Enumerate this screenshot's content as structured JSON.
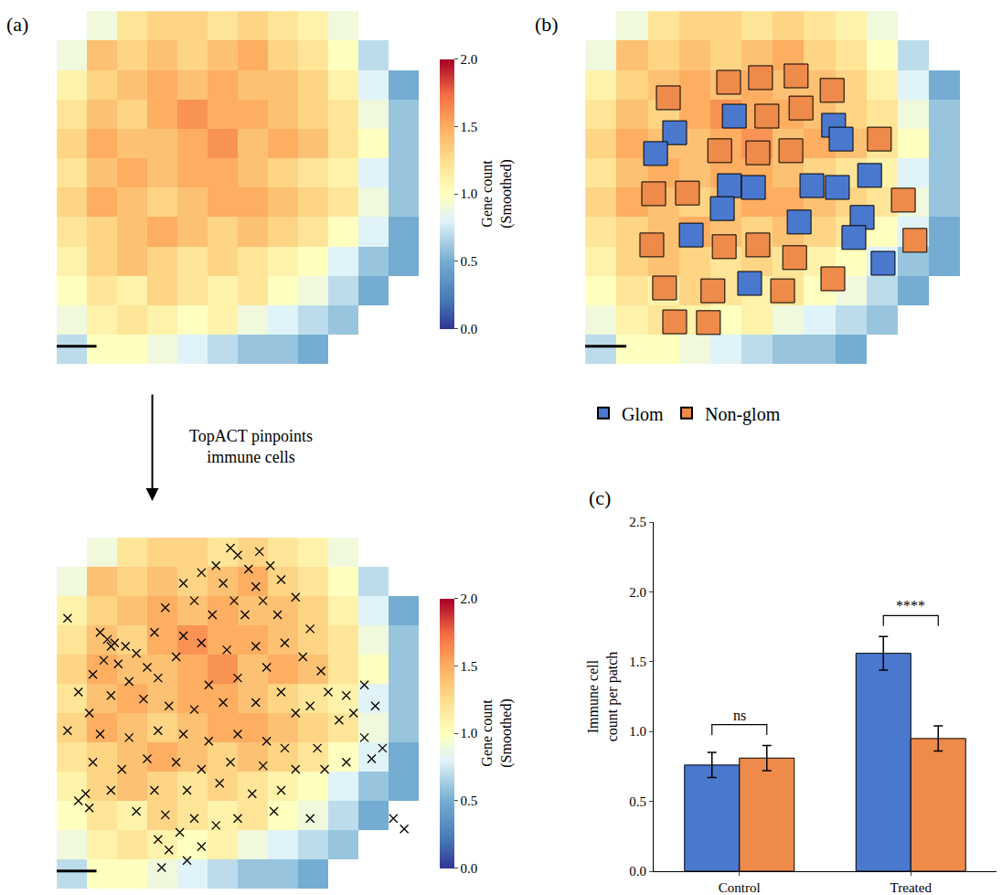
{
  "chart_data": [
    {
      "type": "heatmap",
      "label": "(a)",
      "annotation": "TopACT pinpoints immune cells",
      "x": [
        4.2,
        12.5,
        20.8,
        29.2,
        37.5,
        45.8,
        54.2,
        62.5,
        70.8,
        79.2,
        87.5,
        95.8
      ],
      "y": [
        4.2,
        12.5,
        20.8,
        29.2,
        37.5,
        45.8,
        54.2,
        62.5,
        70.8,
        79.2,
        87.5,
        95.8
      ],
      "z": [
        [
          null,
          0.9,
          1.2,
          1.3,
          1.3,
          1.2,
          1.3,
          1.2,
          1.1,
          0.9,
          null,
          null
        ],
        [
          0.9,
          1.4,
          1.3,
          1.4,
          1.3,
          1.4,
          1.5,
          1.3,
          1.2,
          1.0,
          0.7,
          null
        ],
        [
          1.1,
          1.3,
          1.4,
          1.5,
          1.4,
          1.5,
          1.4,
          1.4,
          1.3,
          1.1,
          0.8,
          0.5
        ],
        [
          1.2,
          1.4,
          1.3,
          1.5,
          1.6,
          1.5,
          1.5,
          1.4,
          1.3,
          1.2,
          0.9,
          0.6
        ],
        [
          1.3,
          1.5,
          1.4,
          1.4,
          1.5,
          1.6,
          1.4,
          1.5,
          1.4,
          1.2,
          1.0,
          0.6
        ],
        [
          1.2,
          1.4,
          1.5,
          1.4,
          1.5,
          1.5,
          1.4,
          1.3,
          1.2,
          1.1,
          0.8,
          0.6
        ],
        [
          1.3,
          1.5,
          1.4,
          1.3,
          1.4,
          1.5,
          1.5,
          1.4,
          1.3,
          1.2,
          0.9,
          0.6
        ],
        [
          1.2,
          1.3,
          1.4,
          1.5,
          1.4,
          1.3,
          1.4,
          1.3,
          1.2,
          1.0,
          0.8,
          0.5
        ],
        [
          1.1,
          1.3,
          1.4,
          1.3,
          1.2,
          1.3,
          1.2,
          1.1,
          1.0,
          0.8,
          0.6,
          0.5
        ],
        [
          1.0,
          1.2,
          1.1,
          1.3,
          1.2,
          1.1,
          1.2,
          1.0,
          0.9,
          0.7,
          0.5,
          null
        ],
        [
          0.9,
          1.1,
          1.2,
          1.1,
          1.0,
          1.1,
          0.9,
          0.8,
          0.7,
          0.6,
          null,
          null
        ],
        [
          0.7,
          1.0,
          1.0,
          0.9,
          0.8,
          0.7,
          0.6,
          0.6,
          0.5,
          null,
          null,
          null
        ]
      ],
      "zlim": [
        0,
        2
      ],
      "zticks": [
        {
          "value": 0,
          "label": "0.0"
        },
        0.5,
        {
          "value": 1,
          "label": "1.0"
        },
        1.5,
        {
          "value": 2,
          "label": "2.0"
        }
      ],
      "colorbar_title": "Gene count (Smoothed)",
      "xlim": [
        0,
        100
      ],
      "ylim": [
        100,
        0
      ],
      "tick_labels": false
    },
    {
      "type": "heatmap",
      "x": [
        4.2,
        12.5,
        20.8,
        29.2,
        37.5,
        45.8,
        54.2,
        62.5,
        70.8,
        79.2,
        87.5,
        95.8
      ],
      "y": [
        4.2,
        12.5,
        20.8,
        29.2,
        37.5,
        45.8,
        54.2,
        62.5,
        70.8,
        79.2,
        87.5,
        95.8
      ],
      "z": [
        [
          null,
          0.9,
          1.2,
          1.3,
          1.3,
          1.2,
          1.3,
          1.2,
          1.1,
          0.9,
          null,
          null
        ],
        [
          0.9,
          1.4,
          1.3,
          1.4,
          1.3,
          1.4,
          1.5,
          1.3,
          1.2,
          1.0,
          0.7,
          null
        ],
        [
          1.1,
          1.3,
          1.4,
          1.5,
          1.4,
          1.5,
          1.4,
          1.4,
          1.3,
          1.1,
          0.8,
          0.5
        ],
        [
          1.2,
          1.4,
          1.3,
          1.5,
          1.6,
          1.5,
          1.5,
          1.4,
          1.3,
          1.2,
          0.9,
          0.6
        ],
        [
          1.3,
          1.5,
          1.4,
          1.4,
          1.5,
          1.6,
          1.4,
          1.5,
          1.4,
          1.2,
          1.0,
          0.6
        ],
        [
          1.2,
          1.4,
          1.5,
          1.4,
          1.5,
          1.5,
          1.4,
          1.3,
          1.2,
          1.1,
          0.8,
          0.6
        ],
        [
          1.3,
          1.5,
          1.4,
          1.3,
          1.4,
          1.5,
          1.5,
          1.4,
          1.3,
          1.2,
          0.9,
          0.6
        ],
        [
          1.2,
          1.3,
          1.4,
          1.5,
          1.4,
          1.3,
          1.4,
          1.3,
          1.2,
          1.0,
          0.8,
          0.5
        ],
        [
          1.1,
          1.3,
          1.4,
          1.3,
          1.2,
          1.3,
          1.2,
          1.1,
          1.0,
          0.8,
          0.6,
          0.5
        ],
        [
          1.0,
          1.2,
          1.1,
          1.3,
          1.2,
          1.1,
          1.2,
          1.0,
          0.9,
          0.7,
          0.5,
          null
        ],
        [
          0.9,
          1.1,
          1.2,
          1.1,
          1.0,
          1.1,
          0.9,
          0.8,
          0.7,
          0.6,
          null,
          null
        ],
        [
          0.7,
          1.0,
          1.0,
          0.9,
          0.8,
          0.7,
          0.6,
          0.6,
          0.5,
          null,
          null,
          null
        ]
      ],
      "zlim": [
        0,
        2
      ],
      "zticks": [
        {
          "value": 0,
          "label": "0.0"
        },
        0.5,
        {
          "value": 1,
          "label": "1.0"
        },
        1.5,
        {
          "value": 2,
          "label": "2.0"
        }
      ],
      "colorbar_title": "Gene count (Smoothed)",
      "xlim": [
        0,
        100
      ],
      "ylim": [
        100,
        0
      ],
      "tick_labels": false,
      "series": [
        {
          "type": "scatter",
          "marker": "x",
          "color": "#000000",
          "x": [
            48,
            50,
            56,
            44,
            53,
            59,
            40,
            35,
            46,
            55,
            62,
            38,
            49,
            57,
            66,
            30,
            43,
            52,
            61,
            3,
            12,
            14,
            15,
            16,
            19,
            22,
            13,
            17,
            25,
            10,
            20,
            28,
            33,
            27,
            35,
            40,
            47,
            55,
            63,
            70,
            68,
            73,
            58,
            50,
            42,
            62,
            75,
            80,
            85,
            88,
            82,
            78,
            70,
            66,
            55,
            46,
            38,
            31,
            24,
            15,
            6,
            9,
            3,
            12,
            20,
            28,
            35,
            42,
            50,
            58,
            63,
            72,
            85,
            90,
            87,
            80,
            74,
            66,
            57,
            48,
            40,
            33,
            25,
            18,
            10,
            15,
            27,
            36,
            45,
            54,
            62,
            8,
            6,
            9,
            22,
            30,
            38,
            44,
            34,
            28,
            31,
            36,
            29,
            40,
            50,
            60,
            70,
            93,
            96
          ],
          "y": [
            3,
            5,
            4,
            8,
            9,
            8,
            10,
            13,
            13,
            14,
            12,
            18,
            18,
            18,
            17,
            20,
            22,
            22,
            22,
            23,
            27,
            29,
            31,
            30,
            31,
            33,
            35,
            36,
            37,
            39,
            41,
            40,
            34,
            27,
            28,
            30,
            32,
            31,
            30,
            26,
            34,
            38,
            37,
            40,
            42,
            44,
            44,
            45,
            42,
            48,
            50,
            52,
            48,
            50,
            47,
            47,
            49,
            48,
            46,
            45,
            44,
            50,
            55,
            56,
            57,
            55,
            56,
            58,
            56,
            58,
            60,
            60,
            57,
            60,
            63,
            64,
            66,
            66,
            65,
            64,
            66,
            64,
            63,
            66,
            64,
            72,
            72,
            72,
            70,
            73,
            72,
            73,
            75,
            77,
            78,
            79,
            80,
            82,
            84,
            86,
            89,
            92,
            94,
            88,
            80,
            78,
            80,
            80,
            83
          ]
        }
      ]
    },
    {
      "type": "heatmap",
      "label": "(b)",
      "x": [
        4.2,
        12.5,
        20.8,
        29.2,
        37.5,
        45.8,
        54.2,
        62.5,
        70.8,
        79.2,
        87.5,
        95.8
      ],
      "y": [
        4.2,
        12.5,
        20.8,
        29.2,
        37.5,
        45.8,
        54.2,
        62.5,
        70.8,
        79.2,
        87.5,
        95.8
      ],
      "z": [
        [
          null,
          0.9,
          1.2,
          1.3,
          1.3,
          1.2,
          1.3,
          1.2,
          1.1,
          0.9,
          null,
          null
        ],
        [
          0.9,
          1.4,
          1.3,
          1.4,
          1.3,
          1.4,
          1.5,
          1.3,
          1.2,
          1.0,
          0.7,
          null
        ],
        [
          1.1,
          1.3,
          1.4,
          1.5,
          1.4,
          1.5,
          1.4,
          1.4,
          1.3,
          1.1,
          0.8,
          0.5
        ],
        [
          1.2,
          1.4,
          1.3,
          1.5,
          1.6,
          1.5,
          1.5,
          1.4,
          1.3,
          1.2,
          0.9,
          0.6
        ],
        [
          1.3,
          1.5,
          1.4,
          1.4,
          1.5,
          1.6,
          1.4,
          1.5,
          1.4,
          1.2,
          1.0,
          0.6
        ],
        [
          1.2,
          1.4,
          1.5,
          1.4,
          1.5,
          1.5,
          1.4,
          1.3,
          1.2,
          1.1,
          0.8,
          0.6
        ],
        [
          1.3,
          1.5,
          1.4,
          1.3,
          1.4,
          1.5,
          1.5,
          1.4,
          1.3,
          1.2,
          0.9,
          0.6
        ],
        [
          1.2,
          1.3,
          1.4,
          1.5,
          1.4,
          1.3,
          1.4,
          1.3,
          1.2,
          1.0,
          0.8,
          0.5
        ],
        [
          1.1,
          1.3,
          1.4,
          1.3,
          1.2,
          1.3,
          1.2,
          1.1,
          1.0,
          0.8,
          0.6,
          0.5
        ],
        [
          1.0,
          1.2,
          1.1,
          1.3,
          1.2,
          1.1,
          1.2,
          1.0,
          0.9,
          0.7,
          0.5,
          null
        ],
        [
          0.9,
          1.1,
          1.2,
          1.1,
          1.0,
          1.1,
          0.9,
          0.8,
          0.7,
          0.6,
          null,
          null
        ],
        [
          0.7,
          1.0,
          1.0,
          0.9,
          0.8,
          0.7,
          0.6,
          0.6,
          0.5,
          null,
          null,
          null
        ]
      ],
      "zlim": [
        0,
        2
      ],
      "xlim": [
        0,
        100
      ],
      "ylim": [
        100,
        0
      ],
      "tick_labels": false,
      "legend": "bottom",
      "series": [
        {
          "name": "Glom",
          "type": "scatter",
          "marker": "square",
          "color": "#4a78cf",
          "x": [
            23.9,
            18.8,
            39.8,
            66.3,
            68.3,
            38.5,
            44.9,
            60.5,
            67.3,
            75.9,
            36.6,
            57.1,
            73.9,
            28.3,
            71.7,
            43.9,
            79.5
          ],
          "y": [
            34.5,
            40.4,
            29.8,
            32.4,
            36.3,
            49.5,
            50.0,
            49.5,
            50.0,
            46.6,
            56.0,
            59.8,
            58.5,
            63.5,
            64.2,
            77.2,
            71.5
          ]
        },
        {
          "name": "Non-glom",
          "type": "scatter",
          "marker": "square",
          "color": "#ee8a4a",
          "x": [
            22.2,
            38.3,
            46.8,
            56.3,
            65.9,
            48.5,
            57.6,
            78.5,
            35.9,
            46.1,
            54.9,
            18.3,
            27.3,
            84.9,
            17.8,
            37.1,
            46.1,
            55.9,
            88.0,
            21.2,
            34.1,
            52.7,
            66.1,
            23.9,
            32.9
          ],
          "y": [
            24.6,
            20.2,
            18.9,
            18.4,
            22.5,
            29.8,
            27.5,
            36.3,
            39.6,
            40.2,
            39.6,
            51.8,
            51.6,
            53.6,
            66.3,
            66.8,
            66.3,
            69.9,
            65.0,
            78.5,
            79.3,
            79.3,
            75.9,
            88.1,
            88.3
          ]
        }
      ]
    },
    {
      "type": "bar",
      "label": "(c)",
      "categories": [
        "Control",
        "Treated"
      ],
      "series": [
        {
          "name": "Glom",
          "color": "#4a78cf",
          "values": [
            0.76,
            1.56
          ],
          "error": [
            0.09,
            0.12
          ]
        },
        {
          "name": "Non-glom",
          "color": "#ee8a4a",
          "values": [
            0.81,
            0.95
          ],
          "error": [
            0.09,
            0.09
          ]
        }
      ],
      "ylim": [
        0,
        2.5
      ],
      "yticks": [
        {
          "value": 0,
          "label": "0.0"
        },
        0.5,
        {
          "value": 1,
          "label": "1.0"
        },
        1.5,
        {
          "value": 2,
          "label": "2.0"
        },
        2.5
      ],
      "y_label": "Immune cell count per patch",
      "significance": [
        "ns",
        "****"
      ]
    }
  ]
}
